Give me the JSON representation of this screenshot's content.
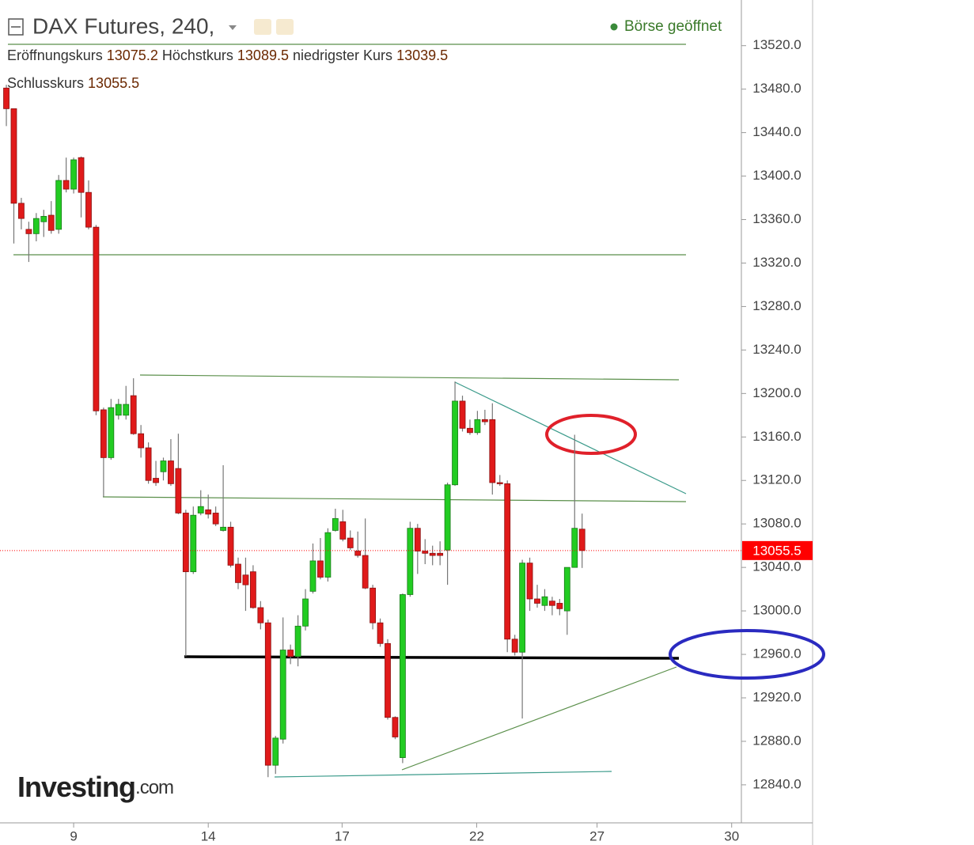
{
  "chart_data": {
    "type": "candlestick",
    "title": "DAX Futures, 240,",
    "status": "Börse geöffnet",
    "ohlc_labels": [
      "Eröffnungskurs",
      "Höchstkurs",
      "niedrigster Kurs",
      "Schlusskurs"
    ],
    "watermark": [
      "Investing",
      ".com"
    ],
    "up_color": "#22cc22",
    "down_color": "#e01a1a",
    "last_price_color": "#ff0000",
    "x": [
      0,
      1,
      2,
      3,
      4,
      5,
      6,
      7,
      8,
      9,
      10,
      11,
      12,
      13,
      14,
      15,
      16,
      17,
      18,
      19,
      20,
      21,
      22,
      23,
      24,
      25,
      26,
      27,
      28,
      29,
      30,
      31,
      32,
      33,
      34,
      35,
      36,
      37,
      38,
      39,
      40,
      41,
      42,
      43,
      44,
      45,
      46,
      47,
      48,
      49,
      50,
      51,
      52,
      53,
      54,
      55,
      56,
      57,
      58,
      59,
      60,
      61,
      62,
      63,
      64,
      65,
      66,
      67,
      68,
      69,
      70,
      71,
      72,
      73,
      74,
      75,
      76,
      77
    ],
    "open": [
      13481,
      13462,
      13375,
      13351,
      13347,
      13358,
      13364,
      13351,
      13396,
      13388,
      13417,
      13385,
      13353,
      13185,
      13141,
      13180,
      13180,
      13198,
      13163,
      13150,
      13122,
      13128,
      13138,
      13131,
      13090,
      13036,
      13090,
      13093,
      13090,
      13074,
      13077,
      13043,
      13033,
      13036,
      13003,
      12989,
      12858,
      12882,
      12964,
      12958,
      12986,
      13018,
      13046,
      13031,
      13074,
      13082,
      13067,
      13055,
      13051,
      13021,
      12989,
      12970,
      12902,
      12865,
      13015,
      13076,
      13055,
      13053,
      13053,
      13056,
      13116,
      13193,
      13168,
      13164,
      13176,
      13176,
      13118,
      13117,
      12974,
      12962,
      13044,
      13011,
      13005,
      13009,
      13007,
      13000,
      13040,
      13075.2
    ],
    "high": [
      13484,
      13462,
      13380,
      13358,
      13366,
      13369,
      13377,
      13401,
      13417,
      13417,
      13418,
      13396,
      13355,
      13187,
      13195,
      13195,
      13207,
      13214,
      13171,
      13155,
      13138,
      13141,
      13158,
      13163,
      13093,
      13096,
      13111,
      13107,
      13096,
      13134,
      13082,
      13049,
      13049,
      13042,
      13009,
      12992,
      12885,
      12994,
      12969,
      12996,
      13020,
      13062,
      13067,
      13076,
      13094,
      13093,
      13074,
      13073,
      13085,
      13024,
      12993,
      12974,
      12903,
      13016,
      13082,
      13080,
      13066,
      13060,
      13064,
      13118,
      13211,
      13198,
      13176,
      13184,
      13185,
      13191,
      13125,
      13120,
      12978,
      13047,
      13049,
      13024,
      13020,
      13013,
      13011,
      13040,
      13162,
      13089.5
    ],
    "low": [
      13446,
      13338,
      13351,
      13321,
      13340,
      13344,
      13347,
      13347,
      13385,
      13384,
      13362,
      13351,
      13180,
      13105,
      13139,
      13176,
      13176,
      13162,
      13141,
      13117,
      13115,
      13120,
      13115,
      13089,
      12958,
      13034,
      13088,
      13085,
      13078,
      13073,
      13040,
      13020,
      13000,
      13002,
      12983,
      12847,
      12850,
      12878,
      12951,
      12949,
      12982,
      13016,
      13029,
      13027,
      13073,
      13064,
      13056,
      13049,
      13020,
      12983,
      12967,
      12900,
      12882,
      12860,
      13013,
      13034,
      13043,
      13042,
      13042,
      13024,
      13115,
      13165,
      13162,
      13162,
      13171,
      13107,
      13115,
      12962,
      12959,
      12901,
      13000,
      13003,
      13000,
      12996,
      12996,
      12978,
      13040,
      13039.5
    ],
    "close": [
      13462,
      13375,
      13361,
      13347,
      13361,
      13363,
      13350,
      13396,
      13388,
      13415,
      13385,
      13353,
      13184,
      13141,
      13187,
      13190,
      13190,
      13163,
      13150,
      13120,
      13118,
      13138,
      13117,
      13090,
      13036,
      13088,
      13096,
      13089,
      13080,
      13077,
      13042,
      13026,
      13024,
      13003,
      12989,
      12858,
      12883,
      12964,
      12958,
      12986,
      13011,
      13046,
      13031,
      13072,
      13085,
      13066,
      13058,
      13051,
      13021,
      12989,
      12970,
      12902,
      12884,
      13015,
      13076,
      13055,
      13053,
      13051,
      13051,
      13116,
      13193,
      13168,
      13164,
      13176,
      13174,
      13118,
      13117,
      12974,
      12962,
      13044,
      13011,
      13007,
      13013,
      13005,
      13002,
      13040,
      13076,
      13055.5
    ],
    "xlim": [
      -0.85,
      98.3
    ],
    "xticks": [
      {
        "value": 9,
        "label": "9"
      },
      {
        "value": 27,
        "label": "14"
      },
      {
        "value": 44.9,
        "label": "17"
      },
      {
        "value": 62.9,
        "label": "22"
      },
      {
        "value": 79,
        "label": "27"
      },
      {
        "value": 97,
        "label": "30"
      }
    ],
    "ylim": [
      12805,
      13562
    ],
    "yticks": [
      {
        "value": 12840,
        "label": "12840.0"
      },
      {
        "value": 12880,
        "label": "12880.0"
      },
      {
        "value": 12920,
        "label": "12920.0"
      },
      {
        "value": 12960,
        "label": "12960.0"
      },
      {
        "value": 13000,
        "label": "13000.0"
      },
      {
        "value": 13040,
        "label": "13040.0"
      },
      {
        "value": 13080,
        "label": "13080.0"
      },
      {
        "value": 13120,
        "label": "13120.0"
      },
      {
        "value": 13160,
        "label": "13160.0"
      },
      {
        "value": 13200,
        "label": "13200.0"
      },
      {
        "value": 13240,
        "label": "13240.0"
      },
      {
        "value": 13280,
        "label": "13280.0"
      },
      {
        "value": 13320,
        "label": "13320.0"
      },
      {
        "value": 13360,
        "label": "13360.0"
      },
      {
        "value": 13400,
        "label": "13400.0"
      },
      {
        "value": 13440,
        "label": "13440.0"
      },
      {
        "value": 13480,
        "label": "13480.0"
      },
      {
        "value": 13520,
        "label": "13520.0"
      }
    ],
    "grid": false
  }
}
